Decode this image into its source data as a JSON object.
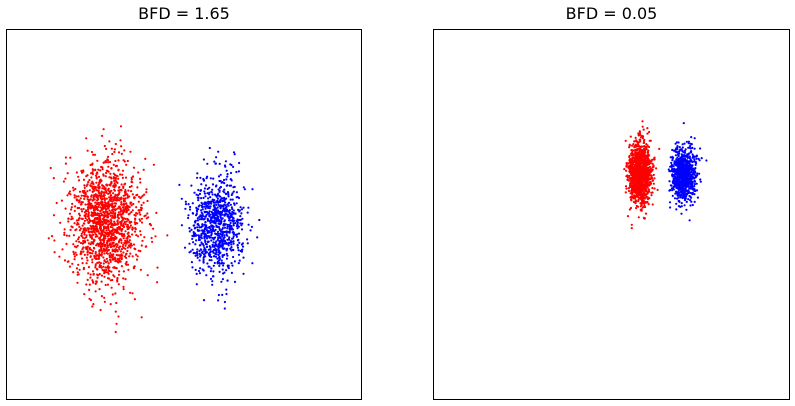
{
  "colors": {
    "series_a": "#ff0000",
    "series_b": "#0000ff",
    "axes": "#000000",
    "background": "#ffffff"
  },
  "chart_data": [
    {
      "type": "scatter",
      "title": "BFD = 1.65",
      "xlabel": "",
      "ylabel": "",
      "grid": false,
      "legend": "none",
      "ticks": "none",
      "xlim": [
        -5,
        5
      ],
      "ylim": [
        -5,
        5
      ],
      "series": [
        {
          "color": "#ff0000",
          "n_points": 1500,
          "center": [
            -2.2,
            -0.2
          ],
          "spread": [
            1.0,
            1.7
          ],
          "range_x": [
            -4.2,
            -0.3
          ],
          "range_y": [
            -3.9,
            4.3
          ]
        },
        {
          "color": "#0000ff",
          "n_points": 900,
          "center": [
            0.9,
            -0.3
          ],
          "spread": [
            0.75,
            1.35
          ],
          "range_x": [
            -0.3,
            2.3
          ],
          "range_y": [
            -3.1,
            3.7
          ]
        }
      ]
    },
    {
      "type": "scatter",
      "title": "BFD = 0.05",
      "xlabel": "",
      "ylabel": "",
      "grid": false,
      "legend": "none",
      "ticks": "none",
      "xlim": [
        -5,
        5
      ],
      "ylim": [
        -5,
        5
      ],
      "series": [
        {
          "color": "#ff0000",
          "n_points": 1200,
          "center": [
            0.8,
            1.1
          ],
          "spread": [
            0.32,
            0.85
          ],
          "range_x": [
            0.3,
            1.55
          ],
          "range_y": [
            -0.8,
            3.0
          ]
        },
        {
          "color": "#0000ff",
          "n_points": 900,
          "center": [
            2.0,
            1.1
          ],
          "spread": [
            0.35,
            0.75
          ],
          "range_x": [
            1.6,
            2.8
          ],
          "range_y": [
            -0.2,
            2.5
          ]
        }
      ]
    }
  ]
}
